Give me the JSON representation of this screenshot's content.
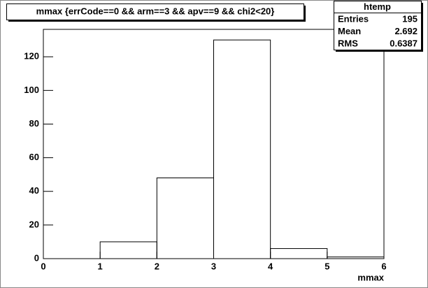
{
  "chart_data": {
    "type": "histogram",
    "title": "mmax {errCode==0 && arm==3 && apv==9 && chi2<20}",
    "x_label": "mmax",
    "bins": [
      0,
      1,
      2,
      3,
      4,
      5,
      6
    ],
    "values": [
      0,
      10,
      48,
      130,
      6,
      1
    ],
    "color": "#000000",
    "xlim": [
      0,
      6
    ],
    "ylim": [
      0,
      136.3
    ],
    "xticks": [
      0,
      1,
      2,
      3,
      4,
      5,
      6
    ],
    "yticks": [
      0,
      20,
      40,
      60,
      80,
      100,
      120
    ],
    "stats": {
      "name": "htemp",
      "rows": [
        {
          "label": "Entries",
          "value": 195
        },
        {
          "label": "Mean",
          "value": 2.692
        },
        {
          "label": "RMS",
          "value": 0.6387
        }
      ]
    }
  }
}
